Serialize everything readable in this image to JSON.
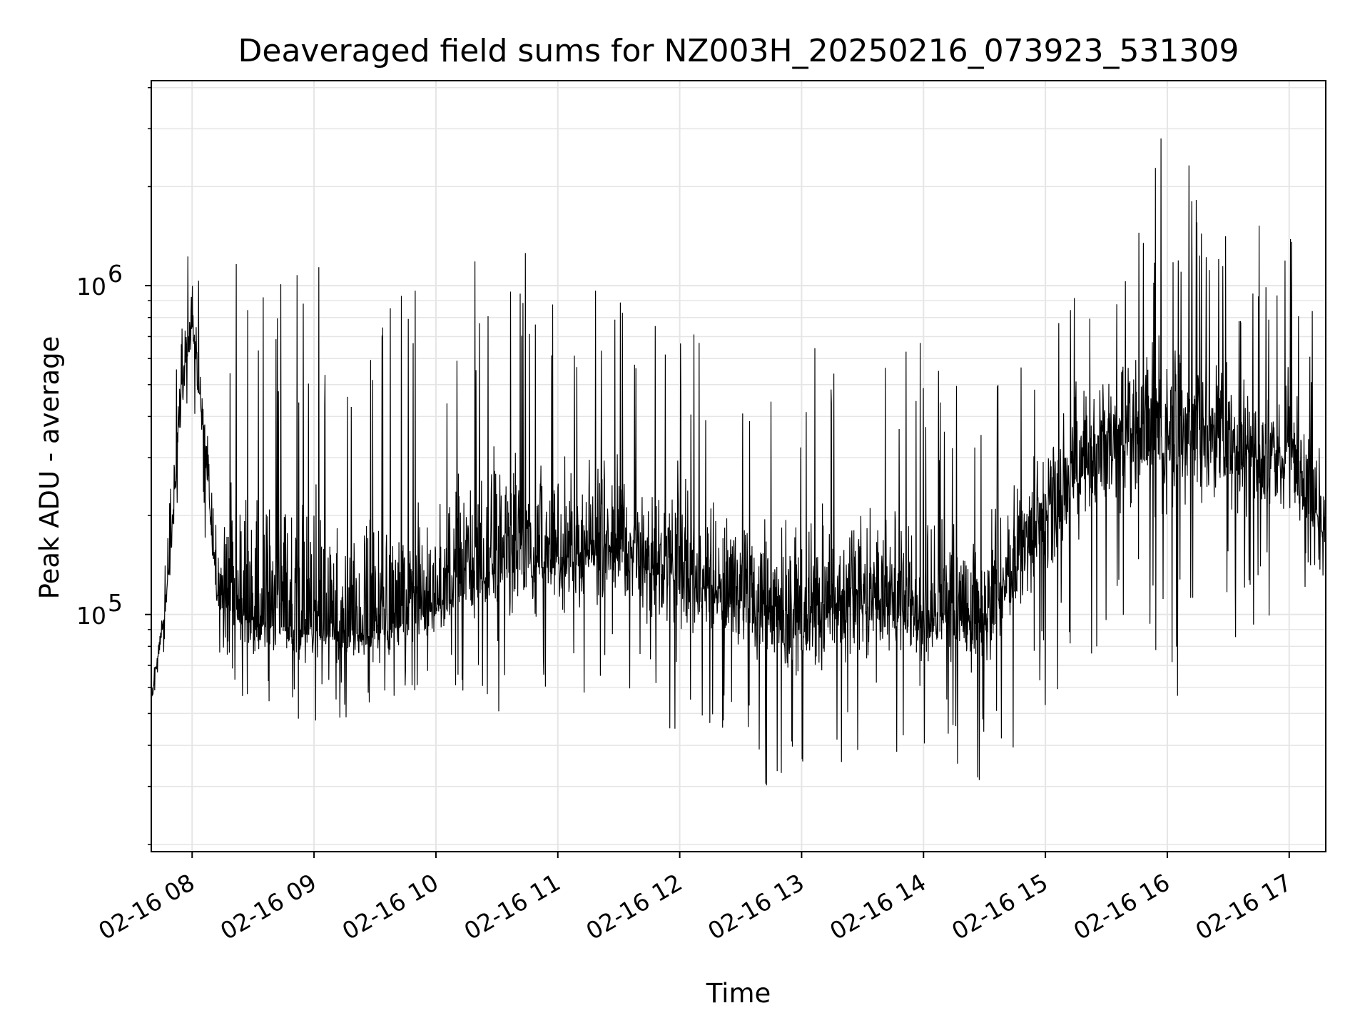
{
  "chart_data": {
    "type": "line",
    "title": "Deaveraged field sums for NZ003H_20250216_073923_531309",
    "xlabel": "Time",
    "ylabel": "Peak ADU - average",
    "y_scale": "log",
    "ylim": [
      19000,
      4200000
    ],
    "xlim": [
      "02-16 07:39:53",
      "02-16 17:18:00"
    ],
    "grid": true,
    "line_color": "#000000",
    "grid_color": "#e5e5e5",
    "x_ticks": [
      {
        "label": "02-16 08",
        "time": "02-16 08:00"
      },
      {
        "label": "02-16 09",
        "time": "02-16 09:00"
      },
      {
        "label": "02-16 10",
        "time": "02-16 10:00"
      },
      {
        "label": "02-16 11",
        "time": "02-16 11:00"
      },
      {
        "label": "02-16 12",
        "time": "02-16 12:00"
      },
      {
        "label": "02-16 13",
        "time": "02-16 13:00"
      },
      {
        "label": "02-16 14",
        "time": "02-16 14:00"
      },
      {
        "label": "02-16 15",
        "time": "02-16 15:00"
      },
      {
        "label": "02-16 16",
        "time": "02-16 16:00"
      },
      {
        "label": "02-16 17",
        "time": "02-16 17:00"
      }
    ],
    "y_ticks": [
      {
        "base": "10",
        "exp": "5",
        "value": 100000
      },
      {
        "base": "10",
        "exp": "6",
        "value": 1000000
      }
    ],
    "series": [
      {
        "envelope_samples": [
          {
            "time": "02-16 07:40",
            "low": 45000,
            "high": 60000
          },
          {
            "time": "02-16 07:48",
            "low": 90000,
            "high": 170000
          },
          {
            "time": "02-16 07:55",
            "low": 250000,
            "high": 1700000
          },
          {
            "time": "02-16 08:00",
            "low": 500000,
            "high": 2000000
          },
          {
            "time": "02-16 08:06",
            "low": 180000,
            "high": 800000
          },
          {
            "time": "02-16 08:12",
            "low": 80000,
            "high": 500000
          },
          {
            "time": "02-16 08:20",
            "low": 55000,
            "high": 1200000
          },
          {
            "time": "02-16 08:35",
            "low": 48000,
            "high": 1000000
          },
          {
            "time": "02-16 08:50",
            "low": 45000,
            "high": 1200000
          },
          {
            "time": "02-16 09:10",
            "low": 48000,
            "high": 1200000
          },
          {
            "time": "02-16 09:30",
            "low": 45000,
            "high": 1000000
          },
          {
            "time": "02-16 09:50",
            "low": 50000,
            "high": 1100000
          },
          {
            "time": "02-16 10:10",
            "low": 55000,
            "high": 1200000
          },
          {
            "time": "02-16 10:30",
            "low": 50000,
            "high": 1300000
          },
          {
            "time": "02-16 10:50",
            "low": 50000,
            "high": 1500000
          },
          {
            "time": "02-16 11:10",
            "low": 55000,
            "high": 1400000
          },
          {
            "time": "02-16 11:30",
            "low": 55000,
            "high": 1200000
          },
          {
            "time": "02-16 11:50",
            "low": 42000,
            "high": 900000
          },
          {
            "time": "02-16 12:10",
            "low": 45000,
            "high": 1000000
          },
          {
            "time": "02-16 12:30",
            "low": 45000,
            "high": 800000
          },
          {
            "time": "02-16 12:50",
            "low": 24000,
            "high": 700000
          },
          {
            "time": "02-16 13:10",
            "low": 35000,
            "high": 900000
          },
          {
            "time": "02-16 13:30",
            "low": 35000,
            "high": 800000
          },
          {
            "time": "02-16 13:50",
            "low": 38000,
            "high": 700000
          },
          {
            "time": "02-16 14:10",
            "low": 38000,
            "high": 650000
          },
          {
            "time": "02-16 14:25",
            "low": 28000,
            "high": 600000
          },
          {
            "time": "02-16 14:40",
            "low": 35000,
            "high": 700000
          },
          {
            "time": "02-16 15:00",
            "low": 50000,
            "high": 800000
          },
          {
            "time": "02-16 15:15",
            "low": 70000,
            "high": 1800000
          },
          {
            "time": "02-16 15:30",
            "low": 80000,
            "high": 1100000
          },
          {
            "time": "02-16 15:45",
            "low": 90000,
            "high": 1500000
          },
          {
            "time": "02-16 16:00",
            "low": 40000,
            "high": 3500000
          },
          {
            "time": "02-16 16:20",
            "low": 100000,
            "high": 1800000
          },
          {
            "time": "02-16 16:40",
            "low": 70000,
            "high": 1500000
          },
          {
            "time": "02-16 17:00",
            "low": 100000,
            "high": 1600000
          },
          {
            "time": "02-16 17:18",
            "low": 120000,
            "high": 600000
          }
        ],
        "median_samples": [
          {
            "time": "02-16 07:40",
            "value": 55000
          },
          {
            "time": "02-16 07:48",
            "value": 120000
          },
          {
            "time": "02-16 07:55",
            "value": 500000
          },
          {
            "time": "02-16 08:00",
            "value": 800000
          },
          {
            "time": "02-16 08:06",
            "value": 350000
          },
          {
            "time": "02-16 08:12",
            "value": 120000
          },
          {
            "time": "02-16 08:30",
            "value": 95000
          },
          {
            "time": "02-16 09:00",
            "value": 90000
          },
          {
            "time": "02-16 09:30",
            "value": 90000
          },
          {
            "time": "02-16 10:00",
            "value": 110000
          },
          {
            "time": "02-16 10:30",
            "value": 140000
          },
          {
            "time": "02-16 11:00",
            "value": 150000
          },
          {
            "time": "02-16 11:30",
            "value": 160000
          },
          {
            "time": "02-16 12:00",
            "value": 130000
          },
          {
            "time": "02-16 12:30",
            "value": 110000
          },
          {
            "time": "02-16 13:00",
            "value": 100000
          },
          {
            "time": "02-16 13:30",
            "value": 110000
          },
          {
            "time": "02-16 14:00",
            "value": 100000
          },
          {
            "time": "02-16 14:30",
            "value": 100000
          },
          {
            "time": "02-16 15:00",
            "value": 200000
          },
          {
            "time": "02-16 15:30",
            "value": 350000
          },
          {
            "time": "02-16 16:00",
            "value": 350000
          },
          {
            "time": "02-16 16:30",
            "value": 330000
          },
          {
            "time": "02-16 17:00",
            "value": 300000
          },
          {
            "time": "02-16 17:18",
            "value": 180000
          }
        ]
      }
    ]
  }
}
